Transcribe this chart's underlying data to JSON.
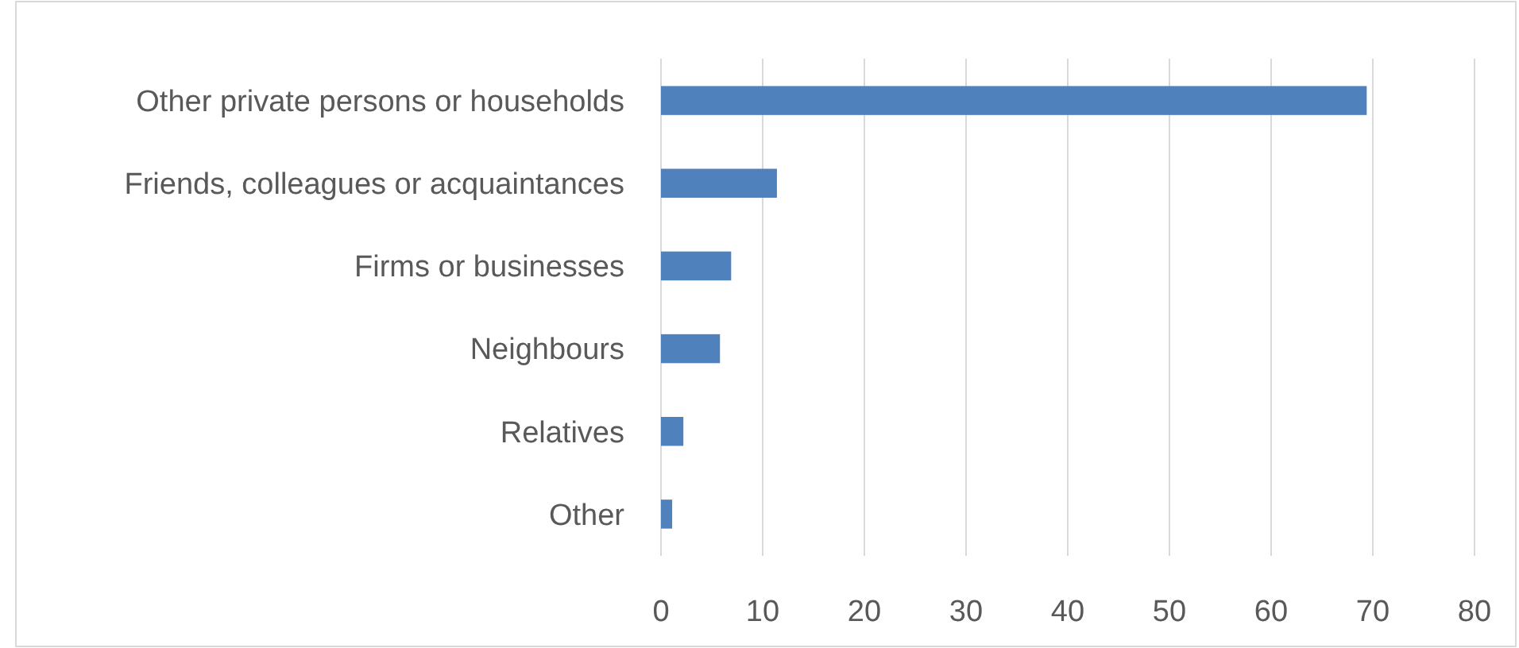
{
  "chart_data": {
    "type": "bar",
    "orientation": "horizontal",
    "categories": [
      "Other private persons or households",
      "Friends, colleagues or acquaintances",
      "Firms or businesses",
      "Neighbours",
      "Relatives",
      "Other"
    ],
    "values": [
      69.4,
      11.4,
      6.9,
      5.8,
      2.2,
      1.1
    ],
    "color": "#4f81bd",
    "xlim": [
      0,
      80
    ],
    "xticks": [
      0,
      10,
      20,
      30,
      40,
      50,
      60,
      70,
      80
    ],
    "grid": "x"
  }
}
